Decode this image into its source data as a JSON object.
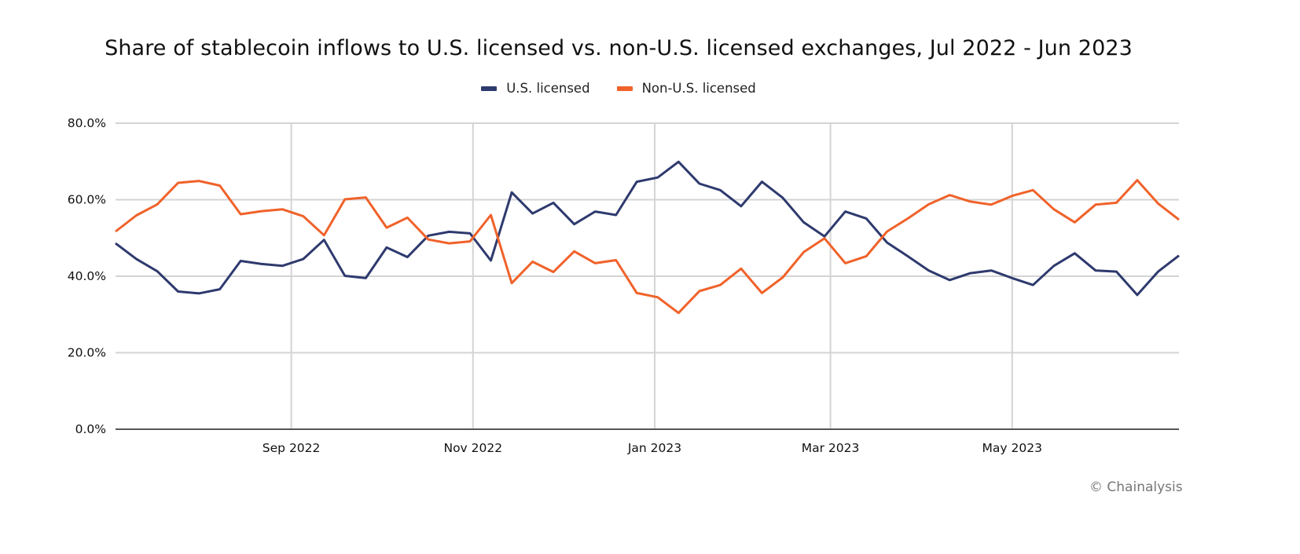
{
  "chart_data": {
    "type": "line",
    "title": "Share of stablecoin inflows to U.S. licensed vs. non-U.S. licensed exchanges, Jul 2022 - Jun 2023",
    "xlabel": "",
    "ylabel": "",
    "ylim": [
      0,
      80
    ],
    "y_ticks": [
      0,
      20,
      40,
      60,
      80
    ],
    "y_tick_labels": [
      "0.0%",
      "20.0%",
      "40.0%",
      "60.0%",
      "80.0%"
    ],
    "x_ticks": [
      {
        "date": "2022-09-01",
        "label": "Sep 2022"
      },
      {
        "date": "2022-11-01",
        "label": "Nov 2022"
      },
      {
        "date": "2023-01-01",
        "label": "Jan 2023"
      },
      {
        "date": "2023-03-01",
        "label": "Mar 2023"
      },
      {
        "date": "2023-05-01",
        "label": "May 2023"
      }
    ],
    "grid": {
      "horizontal": true,
      "vertical": true
    },
    "legend_position": "top-center",
    "x": [
      "2022-07-04",
      "2022-07-11",
      "2022-07-18",
      "2022-07-25",
      "2022-08-01",
      "2022-08-08",
      "2022-08-15",
      "2022-08-22",
      "2022-08-29",
      "2022-09-05",
      "2022-09-12",
      "2022-09-19",
      "2022-09-26",
      "2022-10-03",
      "2022-10-10",
      "2022-10-17",
      "2022-10-24",
      "2022-10-31",
      "2022-11-07",
      "2022-11-14",
      "2022-11-21",
      "2022-11-28",
      "2022-12-05",
      "2022-12-12",
      "2022-12-19",
      "2022-12-26",
      "2023-01-02",
      "2023-01-09",
      "2023-01-16",
      "2023-01-23",
      "2023-01-30",
      "2023-02-06",
      "2023-02-13",
      "2023-02-20",
      "2023-02-27",
      "2023-03-06",
      "2023-03-13",
      "2023-03-20",
      "2023-03-27",
      "2023-04-03",
      "2023-04-10",
      "2023-04-17",
      "2023-04-24",
      "2023-05-01",
      "2023-05-08",
      "2023-05-15",
      "2023-05-22",
      "2023-05-29",
      "2023-06-05",
      "2023-06-12",
      "2023-06-19",
      "2023-06-26"
    ],
    "series": [
      {
        "name": "U.S. licensed",
        "color": "#2e3a6e",
        "values": [
          48.6,
          44.5,
          41.3,
          36.0,
          35.5,
          36.6,
          44.0,
          43.2,
          42.7,
          44.5,
          49.5,
          40.1,
          39.5,
          47.5,
          45.0,
          50.6,
          51.6,
          51.2,
          44.1,
          61.9,
          56.4,
          59.2,
          53.6,
          56.9,
          56.0,
          64.7,
          65.8,
          69.9,
          64.2,
          62.5,
          58.3,
          64.7,
          60.5,
          54.1,
          50.4,
          56.9,
          55.1,
          48.8,
          45.2,
          41.5,
          39.0,
          40.8,
          41.5,
          39.5,
          37.7,
          42.7,
          46.0,
          41.5,
          41.2,
          35.1,
          41.2,
          45.4
        ]
      },
      {
        "name": "Non-U.S. licensed",
        "color": "#f0622a",
        "values": [
          51.7,
          55.9,
          58.8,
          64.4,
          64.9,
          63.7,
          56.2,
          57.0,
          57.5,
          55.7,
          50.7,
          60.1,
          60.6,
          52.7,
          55.3,
          49.6,
          48.6,
          49.1,
          56.0,
          38.2,
          43.8,
          41.1,
          46.5,
          43.4,
          44.2,
          35.6,
          34.5,
          30.4,
          36.1,
          37.7,
          42.0,
          35.6,
          39.7,
          46.3,
          49.9,
          43.4,
          45.2,
          51.7,
          55.1,
          58.8,
          61.2,
          59.5,
          58.7,
          61.0,
          62.5,
          57.5,
          54.1,
          58.7,
          59.2,
          65.1,
          59.0,
          54.8
        ]
      }
    ]
  },
  "copyright": "© Chainalysis",
  "colors": {
    "gridline": "#d4d4d4",
    "axis": "#555555"
  }
}
